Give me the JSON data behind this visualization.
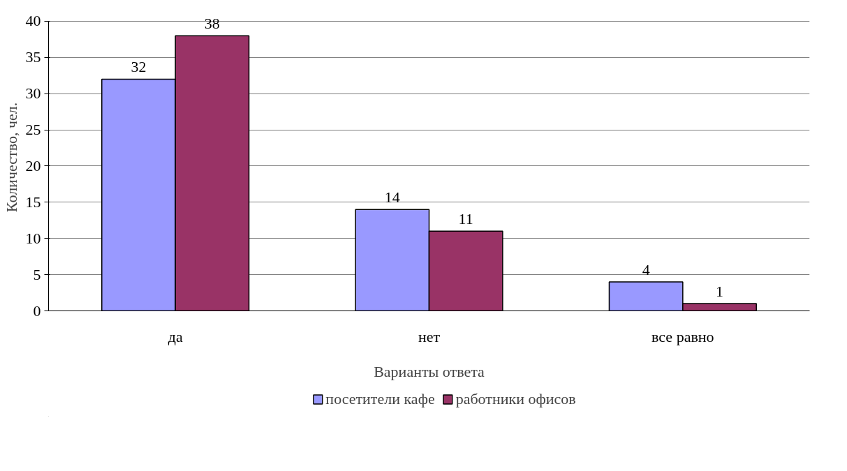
{
  "chart_data": {
    "type": "bar",
    "xlabel": "Варианты ответа",
    "ylabel": "Количество, чел.",
    "categories": [
      "да",
      "нет",
      "все равно"
    ],
    "series": [
      {
        "name": "посетители кафе",
        "color": "#9999ff",
        "values": [
          32,
          14,
          4
        ]
      },
      {
        "name": "работники офисов",
        "color": "#993366",
        "values": [
          38,
          11,
          1
        ]
      }
    ],
    "ylim": [
      0,
      40
    ],
    "yticks": [
      0,
      5,
      10,
      15,
      20,
      25,
      30,
      35,
      40
    ],
    "grid": "y",
    "legend": "bottom",
    "data_labels": true
  }
}
